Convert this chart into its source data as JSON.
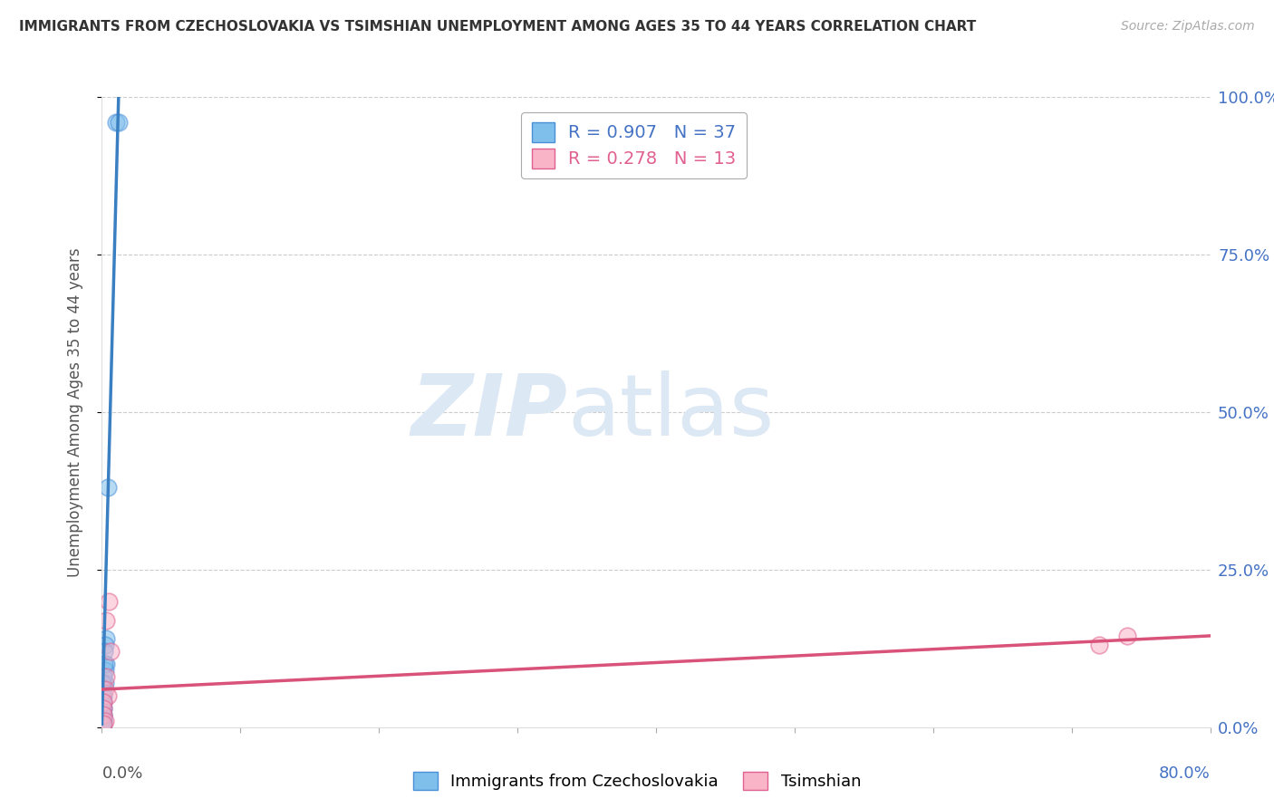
{
  "title": "IMMIGRANTS FROM CZECHOSLOVAKIA VS TSIMSHIAN UNEMPLOYMENT AMONG AGES 35 TO 44 YEARS CORRELATION CHART",
  "source": "Source: ZipAtlas.com",
  "ylabel": "Unemployment Among Ages 35 to 44 years",
  "xlim": [
    0,
    0.8
  ],
  "ylim": [
    0,
    1.0
  ],
  "yticks": [
    0.0,
    0.25,
    0.5,
    0.75,
    1.0
  ],
  "ytick_labels": [
    "0.0%",
    "25.0%",
    "50.0%",
    "75.0%",
    "100.0%"
  ],
  "xtick_left_label": "0.0%",
  "xtick_right_label": "80.0%",
  "watermark_zip": "ZIP",
  "watermark_atlas": "atlas",
  "blue_R": 0.907,
  "blue_N": 37,
  "pink_R": 0.278,
  "pink_N": 13,
  "blue_color": "#7fbfec",
  "pink_color": "#f9b4c8",
  "blue_edge_color": "#4a90d9",
  "pink_edge_color": "#e06090",
  "blue_line_color": "#3a7fc1",
  "pink_line_color": "#d9527a",
  "blue_scatter_x": [
    0.01,
    0.012,
    0.004,
    0.003,
    0.003,
    0.002,
    0.002,
    0.002,
    0.0015,
    0.0015,
    0.001,
    0.001,
    0.001,
    0.001,
    0.001,
    0.001,
    0.001,
    0.001,
    0.0005,
    0.0005,
    0.0005,
    0.0005,
    0.0005,
    0.0005,
    0.0005,
    0.0005,
    0.0005,
    0.0005,
    0.0005,
    0.0005,
    0.0005,
    0.0005,
    0.0005,
    0.0005,
    0.0005,
    0.0005,
    0.0005
  ],
  "blue_scatter_y": [
    0.96,
    0.96,
    0.38,
    0.14,
    0.1,
    0.13,
    0.09,
    0.07,
    0.12,
    0.1,
    0.08,
    0.06,
    0.05,
    0.04,
    0.03,
    0.02,
    0.015,
    0.01,
    0.07,
    0.06,
    0.05,
    0.04,
    0.035,
    0.03,
    0.025,
    0.02,
    0.015,
    0.013,
    0.011,
    0.009,
    0.007,
    0.005,
    0.004,
    0.003,
    0.002,
    0.001,
    0.0005
  ],
  "pink_scatter_x": [
    0.003,
    0.005,
    0.003,
    0.006,
    0.002,
    0.004,
    0.001,
    0.001,
    0.001,
    0.002,
    0.001,
    0.72,
    0.74
  ],
  "pink_scatter_y": [
    0.17,
    0.2,
    0.08,
    0.12,
    0.06,
    0.05,
    0.04,
    0.03,
    0.02,
    0.01,
    0.005,
    0.13,
    0.145
  ],
  "blue_reg_line_x": [
    0.0,
    0.012
  ],
  "blue_reg_line_y": [
    0.005,
    1.0
  ],
  "pink_reg_line_x": [
    0.0,
    0.8
  ],
  "pink_reg_line_y": [
    0.06,
    0.145
  ],
  "legend_box_color": "#ffffff",
  "background_color": "#ffffff",
  "grid_color": "#cccccc",
  "grid_linestyle": "--",
  "spine_color": "#dddddd",
  "right_tick_color": "#4472c4",
  "left_label_color": "#555555",
  "watermark_color": "#e8e8e8"
}
